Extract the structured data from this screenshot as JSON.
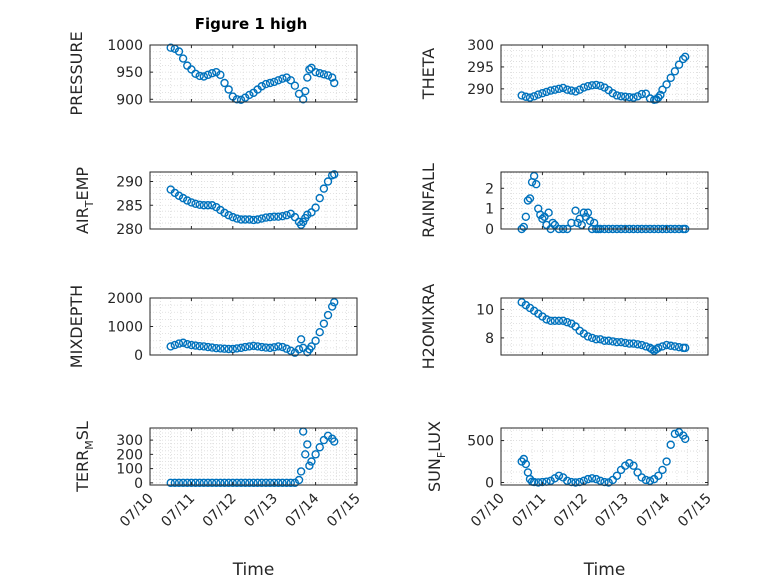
{
  "figure": {
    "title": "Figure 1 high",
    "marker_color": "#0072BD",
    "axis_color": "#262626",
    "grid_color": "#d9d9d9",
    "grid": true
  },
  "chart_data": [
    {
      "type": "scatter",
      "ylabel": "PRESSURE",
      "ylim": [
        895,
        1000
      ],
      "yticks": [
        900,
        950,
        1000
      ],
      "xticks": [
        "07/10",
        "07/11",
        "07/12",
        "07/13",
        "07/14",
        "07/15"
      ],
      "series": [
        {
          "x": [
            10.5,
            10.6,
            10.7,
            10.8,
            10.9,
            11.0,
            11.1,
            11.2,
            11.3,
            11.4,
            11.5,
            11.6,
            11.7,
            11.8,
            11.9,
            12.0,
            12.1,
            12.2,
            12.3,
            12.4,
            12.5,
            12.6,
            12.7,
            12.8,
            12.9,
            13.0,
            13.1,
            13.2,
            13.3,
            13.4,
            13.5,
            13.6,
            13.7,
            13.75,
            13.8,
            13.85,
            13.9,
            14.0,
            14.1,
            14.2,
            14.3,
            14.4,
            14.45
          ],
          "y": [
            995,
            993,
            988,
            975,
            962,
            955,
            947,
            943,
            942,
            945,
            948,
            950,
            945,
            930,
            918,
            905,
            900,
            899,
            903,
            908,
            912,
            918,
            924,
            928,
            930,
            932,
            935,
            938,
            940,
            935,
            925,
            910,
            900,
            915,
            940,
            955,
            958,
            950,
            948,
            946,
            944,
            940,
            930
          ]
        }
      ]
    },
    {
      "type": "scatter",
      "ylabel": "THETA",
      "ylim": [
        287,
        300
      ],
      "yticks": [
        290,
        295,
        300
      ],
      "xticks": [
        "07/10",
        "07/11",
        "07/12",
        "07/13",
        "07/14",
        "07/15"
      ],
      "series": [
        {
          "x": [
            10.5,
            10.6,
            10.7,
            10.8,
            10.9,
            11.0,
            11.1,
            11.2,
            11.3,
            11.4,
            11.5,
            11.6,
            11.7,
            11.8,
            11.9,
            12.0,
            12.1,
            12.2,
            12.3,
            12.4,
            12.5,
            12.6,
            12.7,
            12.8,
            12.9,
            13.0,
            13.1,
            13.2,
            13.3,
            13.4,
            13.5,
            13.6,
            13.7,
            13.75,
            13.8,
            13.85,
            13.9,
            14.0,
            14.1,
            14.2,
            14.3,
            14.4,
            14.45
          ],
          "y": [
            288.5,
            288.2,
            288.0,
            288.3,
            288.7,
            289.0,
            289.3,
            289.6,
            289.8,
            290.0,
            290.2,
            289.8,
            289.6,
            289.4,
            289.8,
            290.3,
            290.6,
            290.8,
            290.9,
            290.7,
            290.3,
            289.7,
            289.0,
            288.5,
            288.3,
            288.2,
            288.1,
            288.0,
            288.3,
            288.8,
            288.9,
            287.8,
            287.5,
            287.6,
            288.0,
            288.6,
            289.8,
            291.0,
            292.5,
            294.0,
            295.5,
            296.8,
            297.3
          ]
        }
      ]
    },
    {
      "type": "scatter",
      "ylabel": "AIR",
      "ylabel_sub": "T",
      "ylabel_tail": "EMP",
      "ylim": [
        280,
        292
      ],
      "yticks": [
        280,
        285,
        290
      ],
      "xticks": [
        "07/10",
        "07/11",
        "07/12",
        "07/13",
        "07/14",
        "07/15"
      ],
      "series": [
        {
          "x": [
            10.5,
            10.6,
            10.7,
            10.8,
            10.9,
            11.0,
            11.1,
            11.2,
            11.3,
            11.4,
            11.5,
            11.6,
            11.7,
            11.8,
            11.9,
            12.0,
            12.1,
            12.2,
            12.3,
            12.4,
            12.5,
            12.6,
            12.7,
            12.8,
            12.9,
            13.0,
            13.1,
            13.2,
            13.3,
            13.4,
            13.5,
            13.6,
            13.65,
            13.7,
            13.75,
            13.8,
            13.9,
            14.0,
            14.1,
            14.2,
            14.3,
            14.4,
            14.45
          ],
          "y": [
            288.3,
            287.6,
            287.0,
            286.5,
            286.0,
            285.6,
            285.3,
            285.1,
            285.0,
            285.0,
            285.0,
            284.6,
            284.0,
            283.4,
            282.9,
            282.5,
            282.2,
            282.0,
            282.0,
            282.0,
            281.9,
            282.0,
            282.2,
            282.4,
            282.5,
            282.6,
            282.6,
            282.7,
            282.9,
            283.2,
            282.5,
            281.5,
            280.9,
            281.5,
            282.3,
            283.0,
            283.5,
            284.5,
            286.5,
            288.5,
            290.0,
            291.3,
            291.5
          ]
        }
      ]
    },
    {
      "type": "scatter",
      "ylabel": "RAINFALL",
      "ylim": [
        0,
        2.8
      ],
      "yticks": [
        0,
        1,
        2
      ],
      "xticks": [
        "07/10",
        "07/11",
        "07/12",
        "07/13",
        "07/14",
        "07/15"
      ],
      "series": [
        {
          "x": [
            10.5,
            10.55,
            10.6,
            10.65,
            10.7,
            10.75,
            10.8,
            10.85,
            10.9,
            10.95,
            11.0,
            11.05,
            11.1,
            11.15,
            11.2,
            11.25,
            11.3,
            11.4,
            11.5,
            11.6,
            11.7,
            11.8,
            11.85,
            11.9,
            11.95,
            12.0,
            12.05,
            12.1,
            12.15,
            12.2,
            12.25,
            12.3,
            12.35,
            12.4,
            12.5,
            12.6,
            12.7,
            12.8,
            12.9,
            13.0,
            13.1,
            13.2,
            13.3,
            13.4,
            13.5,
            13.6,
            13.7,
            13.8,
            13.9,
            14.0,
            14.1,
            14.2,
            14.3,
            14.4,
            14.45
          ],
          "y": [
            0,
            0.1,
            0.6,
            1.4,
            1.5,
            2.3,
            2.6,
            2.2,
            1.0,
            0.7,
            0.5,
            0.6,
            0.2,
            0.8,
            0,
            0.3,
            0.2,
            0,
            0,
            0,
            0.3,
            0.9,
            0.3,
            0.5,
            0.2,
            0.8,
            0.6,
            0.8,
            0.4,
            0,
            0.3,
            0,
            0,
            0,
            0,
            0,
            0,
            0,
            0,
            0,
            0,
            0,
            0,
            0,
            0,
            0,
            0,
            0,
            0,
            0,
            0,
            0,
            0,
            0,
            0
          ]
        }
      ]
    },
    {
      "type": "scatter",
      "ylabel": "MIXDEPTH",
      "ylim": [
        0,
        2000
      ],
      "yticks": [
        0,
        1000,
        2000
      ],
      "xticks": [
        "07/10",
        "07/11",
        "07/12",
        "07/13",
        "07/14",
        "07/15"
      ],
      "series": [
        {
          "x": [
            10.5,
            10.6,
            10.7,
            10.8,
            10.9,
            11.0,
            11.1,
            11.2,
            11.3,
            11.4,
            11.5,
            11.6,
            11.7,
            11.8,
            11.9,
            12.0,
            12.1,
            12.2,
            12.3,
            12.4,
            12.5,
            12.6,
            12.7,
            12.8,
            12.9,
            13.0,
            13.1,
            13.2,
            13.3,
            13.4,
            13.5,
            13.6,
            13.65,
            13.7,
            13.8,
            13.85,
            13.9,
            14.0,
            14.1,
            14.2,
            14.3,
            14.4,
            14.45
          ],
          "y": [
            300,
            350,
            400,
            430,
            380,
            350,
            330,
            310,
            300,
            280,
            260,
            240,
            230,
            220,
            210,
            210,
            230,
            250,
            280,
            300,
            320,
            300,
            280,
            260,
            250,
            270,
            300,
            280,
            220,
            150,
            80,
            200,
            550,
            250,
            100,
            200,
            300,
            500,
            800,
            1100,
            1400,
            1700,
            1850
          ]
        }
      ]
    },
    {
      "type": "scatter",
      "ylabel": "H2OMIXRA",
      "ylim": [
        6.8,
        10.8
      ],
      "yticks": [
        8,
        10
      ],
      "xticks": [
        "07/10",
        "07/11",
        "07/12",
        "07/13",
        "07/14",
        "07/15"
      ],
      "series": [
        {
          "x": [
            10.5,
            10.6,
            10.7,
            10.8,
            10.9,
            11.0,
            11.1,
            11.2,
            11.3,
            11.4,
            11.5,
            11.6,
            11.7,
            11.8,
            11.9,
            12.0,
            12.1,
            12.2,
            12.3,
            12.4,
            12.5,
            12.6,
            12.7,
            12.8,
            12.9,
            13.0,
            13.1,
            13.2,
            13.3,
            13.4,
            13.5,
            13.6,
            13.65,
            13.7,
            13.75,
            13.8,
            13.9,
            14.0,
            14.1,
            14.2,
            14.3,
            14.4,
            14.45
          ],
          "y": [
            10.5,
            10.3,
            10.1,
            9.9,
            9.7,
            9.5,
            9.3,
            9.2,
            9.2,
            9.2,
            9.2,
            9.1,
            9.0,
            8.8,
            8.5,
            8.3,
            8.1,
            8.0,
            7.9,
            7.9,
            7.8,
            7.8,
            7.75,
            7.7,
            7.7,
            7.65,
            7.6,
            7.6,
            7.55,
            7.5,
            7.4,
            7.3,
            7.2,
            7.1,
            7.2,
            7.3,
            7.4,
            7.5,
            7.45,
            7.4,
            7.35,
            7.3,
            7.3
          ]
        }
      ]
    },
    {
      "type": "scatter",
      "ylabel": "TERR",
      "ylabel_sub": "M",
      "ylabel_tail": "SL",
      "ylim": [
        -15,
        385
      ],
      "yticks": [
        0,
        100,
        200,
        300
      ],
      "xticks": [
        "07/10",
        "07/11",
        "07/12",
        "07/13",
        "07/14",
        "07/15"
      ],
      "series": [
        {
          "x": [
            10.5,
            10.6,
            10.7,
            10.8,
            10.9,
            11.0,
            11.1,
            11.2,
            11.3,
            11.4,
            11.5,
            11.6,
            11.7,
            11.8,
            11.9,
            12.0,
            12.1,
            12.2,
            12.3,
            12.4,
            12.5,
            12.6,
            12.7,
            12.8,
            12.9,
            13.0,
            13.1,
            13.2,
            13.3,
            13.4,
            13.5,
            13.6,
            13.65,
            13.7,
            13.75,
            13.8,
            13.85,
            13.9,
            14.0,
            14.1,
            14.2,
            14.3,
            14.4,
            14.45
          ],
          "y": [
            0,
            0,
            0,
            0,
            0,
            0,
            0,
            0,
            0,
            0,
            0,
            0,
            0,
            0,
            0,
            0,
            0,
            0,
            0,
            0,
            0,
            0,
            0,
            0,
            0,
            0,
            0,
            0,
            0,
            0,
            0,
            20,
            80,
            360,
            200,
            270,
            120,
            150,
            200,
            250,
            300,
            330,
            310,
            290
          ]
        }
      ]
    },
    {
      "type": "scatter",
      "ylabel": "SUN",
      "ylabel_sub": "F",
      "ylabel_tail": "LUX",
      "ylim": [
        -30,
        650
      ],
      "yticks": [
        0,
        500
      ],
      "xticks": [
        "07/10",
        "07/11",
        "07/12",
        "07/13",
        "07/14",
        "07/15"
      ],
      "series": [
        {
          "x": [
            10.5,
            10.55,
            10.6,
            10.65,
            10.7,
            10.75,
            10.8,
            10.9,
            11.0,
            11.1,
            11.2,
            11.3,
            11.4,
            11.5,
            11.6,
            11.7,
            11.8,
            11.9,
            12.0,
            12.1,
            12.2,
            12.3,
            12.4,
            12.5,
            12.6,
            12.7,
            12.8,
            12.9,
            13.0,
            13.1,
            13.2,
            13.3,
            13.4,
            13.5,
            13.6,
            13.7,
            13.8,
            13.9,
            14.0,
            14.1,
            14.2,
            14.3,
            14.4,
            14.45
          ],
          "y": [
            250,
            280,
            220,
            120,
            40,
            10,
            5,
            0,
            5,
            10,
            20,
            50,
            80,
            60,
            20,
            5,
            0,
            5,
            20,
            40,
            50,
            40,
            20,
            5,
            0,
            30,
            80,
            150,
            200,
            230,
            200,
            120,
            60,
            30,
            20,
            40,
            80,
            150,
            250,
            450,
            580,
            600,
            560,
            520
          ]
        }
      ]
    }
  ],
  "xlabel": "Time"
}
